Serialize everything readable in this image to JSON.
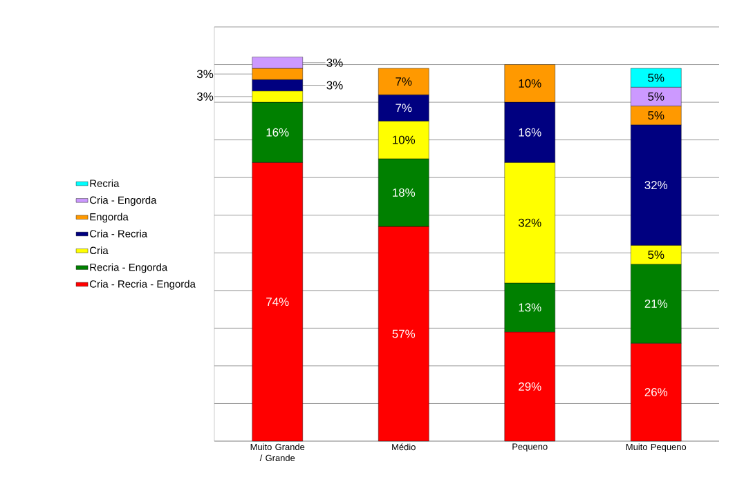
{
  "chart_data": {
    "type": "bar",
    "stacked": true,
    "categories": [
      "Muito Grande / Grande",
      "Médio",
      "Pequeno",
      "Muito Pequeno"
    ],
    "series": [
      {
        "name": "Cria - Recria - Engorda",
        "color": "#ff0000",
        "values": [
          74,
          57,
          29,
          26
        ],
        "value_labels": [
          "74%",
          "57%",
          "29%",
          "26%"
        ]
      },
      {
        "name": "Recria - Engorda",
        "color": "#008000",
        "values": [
          16,
          18,
          13,
          21
        ],
        "value_labels": [
          "16%",
          "18%",
          "13%",
          "21%"
        ]
      },
      {
        "name": "Cria",
        "color": "#ffff00",
        "values": [
          3,
          10,
          32,
          5
        ],
        "value_labels": [
          "3%",
          "10%",
          "32%",
          "5%"
        ]
      },
      {
        "name": "Cria - Recria",
        "color": "#000080",
        "values": [
          3,
          7,
          16,
          32
        ],
        "value_labels": [
          "3%",
          "7%",
          "16%",
          "32%"
        ]
      },
      {
        "name": "Engorda",
        "color": "#ff9900",
        "values": [
          3,
          7,
          10,
          5
        ],
        "value_labels": [
          "3%",
          "7%",
          "10%",
          "5%"
        ]
      },
      {
        "name": "Cria - Engorda",
        "color": "#cc99ff",
        "values": [
          3,
          null,
          null,
          5
        ],
        "value_labels": [
          "3%",
          null,
          null,
          "5%"
        ]
      },
      {
        "name": "Recria",
        "color": "#00ffff",
        "values": [
          null,
          null,
          null,
          5
        ],
        "value_labels": [
          null,
          null,
          null,
          "5%"
        ]
      }
    ],
    "ylim": [
      0,
      110
    ],
    "yticks": [
      {
        "value": 0,
        "label": null
      },
      {
        "value": 10,
        "label": null
      },
      {
        "value": 20,
        "label": null
      },
      {
        "value": 30,
        "label": null
      },
      {
        "value": 40,
        "label": null
      },
      {
        "value": 50,
        "label": null
      },
      {
        "value": 60,
        "label": null
      },
      {
        "value": 70,
        "label": null
      },
      {
        "value": 80,
        "label": null
      },
      {
        "value": 90,
        "label": null
      },
      {
        "value": 100,
        "label": null
      },
      {
        "value": 110,
        "label": null
      }
    ],
    "grid": "y",
    "legend": "left",
    "tick_labels": "x"
  }
}
